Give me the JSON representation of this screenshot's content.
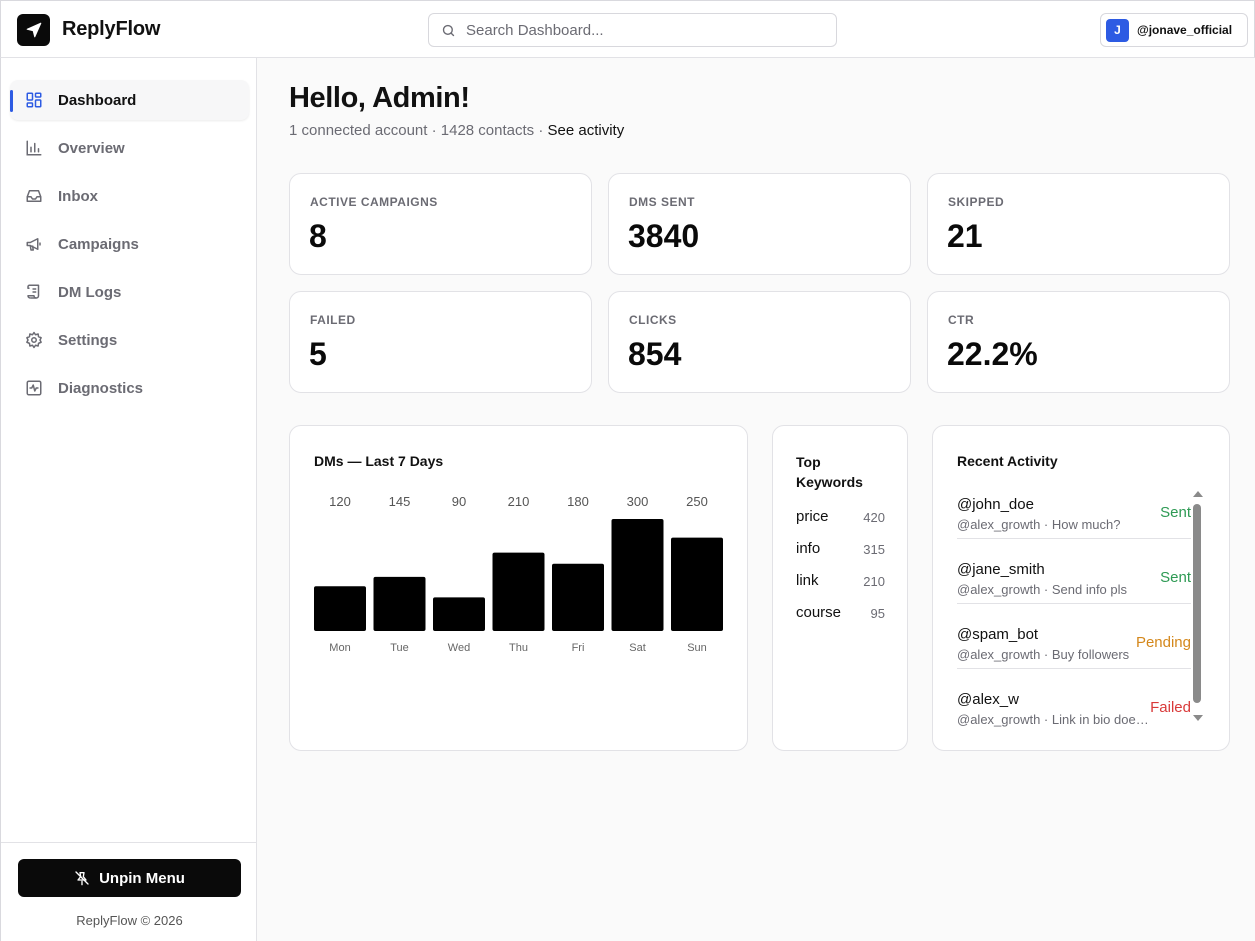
{
  "app": {
    "brand": "ReplyFlow"
  },
  "search": {
    "placeholder": "Search Dashboard..."
  },
  "account": {
    "avatar_letter": "J",
    "handle": "@jonave_official"
  },
  "sidebar": {
    "items": [
      {
        "label": "Dashboard",
        "icon": "dashboard-icon",
        "active": true
      },
      {
        "label": "Overview",
        "icon": "bar-chart-icon"
      },
      {
        "label": "Inbox",
        "icon": "inbox-icon"
      },
      {
        "label": "Campaigns",
        "icon": "megaphone-icon"
      },
      {
        "label": "DM Logs",
        "icon": "scroll-icon"
      },
      {
        "label": "Settings",
        "icon": "gear-icon"
      },
      {
        "label": "Diagnostics",
        "icon": "activity-icon"
      }
    ],
    "unpin_label": "Unpin Menu",
    "copyright": "ReplyFlow © 2026"
  },
  "main": {
    "greeting": "Hello, Admin!",
    "subline_prefix": "1 connected account · 1428 contacts · ",
    "subline_link": "See activity"
  },
  "stats": [
    {
      "label": "ACTIVE CAMPAIGNS",
      "value": "8"
    },
    {
      "label": "DMS SENT",
      "value": "3840"
    },
    {
      "label": "SKIPPED",
      "value": "21"
    },
    {
      "label": "FAILED",
      "value": "5"
    },
    {
      "label": "CLICKS",
      "value": "854"
    },
    {
      "label": "CTR",
      "value": "22.2%"
    }
  ],
  "chart_data": {
    "type": "bar",
    "title": "DMs — Last 7 Days",
    "categories": [
      "Mon",
      "Tue",
      "Wed",
      "Thu",
      "Fri",
      "Sat",
      "Sun"
    ],
    "values": [
      120,
      145,
      90,
      210,
      180,
      300,
      250
    ],
    "ylim": [
      0,
      300
    ],
    "xlabel": "",
    "ylabel": "",
    "grid": false,
    "data_labels": true,
    "colors": {
      "bar": "#000000"
    }
  },
  "keywords": {
    "title": "Top Keywords",
    "items": [
      {
        "name": "price",
        "count": "420"
      },
      {
        "name": "info",
        "count": "315"
      },
      {
        "name": "link",
        "count": "210"
      },
      {
        "name": "course",
        "count": "95"
      }
    ]
  },
  "activity": {
    "title": "Recent Activity",
    "items": [
      {
        "user": "@john_doe",
        "meta": "@alex_growth · How much?",
        "status": "Sent",
        "status_color": "#2e9a54"
      },
      {
        "user": "@jane_smith",
        "meta": "@alex_growth · Send info pls",
        "status": "Sent",
        "status_color": "#2e9a54"
      },
      {
        "user": "@spam_bot",
        "meta": "@alex_growth · Buy followers",
        "status": "Pending",
        "status_color": "#d4881c"
      },
      {
        "user": "@alex_w",
        "meta": "@alex_growth · Link in bio does...",
        "status": "Failed",
        "status_color": "#d93a3a"
      }
    ]
  },
  "colors": {
    "accent": "#2d5be3",
    "dark": "#0a0a0a"
  }
}
